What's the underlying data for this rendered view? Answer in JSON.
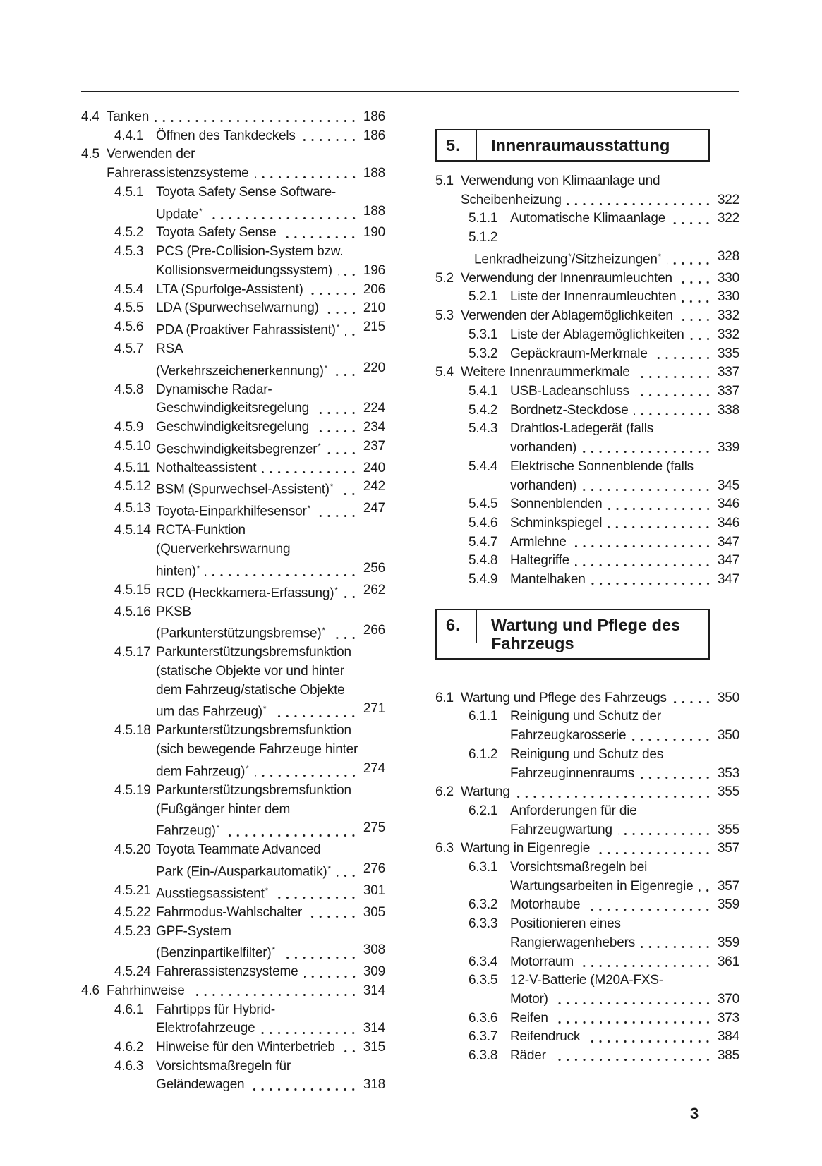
{
  "page": {
    "footer_page_number": "3",
    "text_color": "#1a1a1a"
  },
  "toc": {
    "left_column": {
      "items": [
        {
          "type": "entry",
          "num": "4.4",
          "level": 1,
          "lines": [
            "Tanken"
          ],
          "page": "186"
        },
        {
          "type": "entry",
          "num": "4.4.1",
          "level": 2,
          "lines": [
            "Öffnen des Tankdeckels"
          ],
          "page": "186"
        },
        {
          "type": "entry",
          "num": "4.5",
          "level": 1,
          "lines": [
            "Verwenden der",
            "Fahrerassistenzsysteme"
          ],
          "page": "188"
        },
        {
          "type": "entry",
          "num": "4.5.1",
          "level": 2,
          "lines": [
            "Toyota Safety Sense Software-",
            "Update*"
          ],
          "page": "188"
        },
        {
          "type": "entry",
          "num": "4.5.2",
          "level": 2,
          "lines": [
            "Toyota Safety Sense"
          ],
          "page": "190"
        },
        {
          "type": "entry",
          "num": "4.5.3",
          "level": 2,
          "lines": [
            "PCS (Pre-Collision-System bzw.",
            "Kollisionsvermeidungssystem)"
          ],
          "page": "196"
        },
        {
          "type": "entry",
          "num": "4.5.4",
          "level": 2,
          "lines": [
            "LTA (Spurfolge-Assistent)"
          ],
          "page": "206"
        },
        {
          "type": "entry",
          "num": "4.5.5",
          "level": 2,
          "lines": [
            "LDA (Spurwechselwarnung)"
          ],
          "page": "210"
        },
        {
          "type": "entry",
          "num": "4.5.6",
          "level": 2,
          "lines": [
            "PDA (Proaktiver Fahrassistent)*"
          ],
          "page": "215"
        },
        {
          "type": "entry",
          "num": "4.5.7",
          "level": 2,
          "lines": [
            "RSA",
            "(Verkehrszeichenerkennung)*"
          ],
          "page": "220"
        },
        {
          "type": "entry",
          "num": "4.5.8",
          "level": 2,
          "lines": [
            "Dynamische Radar-",
            "Geschwindigkeitsregelung"
          ],
          "page": "224"
        },
        {
          "type": "entry",
          "num": "4.5.9",
          "level": 2,
          "lines": [
            "Geschwindigkeitsregelung"
          ],
          "page": "234"
        },
        {
          "type": "entry",
          "num": "4.5.10",
          "level": 2,
          "lines": [
            "Geschwindigkeitsbegrenzer*"
          ],
          "page": "237"
        },
        {
          "type": "entry",
          "num": "4.5.11",
          "level": 2,
          "lines": [
            "Nothalteassistent"
          ],
          "page": "240"
        },
        {
          "type": "entry",
          "num": "4.5.12",
          "level": 2,
          "lines": [
            "BSM (Spurwechsel-Assistent)*"
          ],
          "page": "242"
        },
        {
          "type": "entry",
          "num": "4.5.13",
          "level": 2,
          "lines": [
            "Toyota-Einparkhilfesensor*"
          ],
          "page": "247"
        },
        {
          "type": "entry",
          "num": "4.5.14",
          "level": 2,
          "lines": [
            "RCTA-Funktion",
            "(Querverkehrswarnung",
            "hinten)*"
          ],
          "page": "256"
        },
        {
          "type": "entry",
          "num": "4.5.15",
          "level": 2,
          "lines": [
            "RCD (Heckkamera-Erfassung)*"
          ],
          "page": "262"
        },
        {
          "type": "entry",
          "num": "4.5.16",
          "level": 2,
          "lines": [
            "PKSB",
            "(Parkunterstützungsbremse)*"
          ],
          "page": "266"
        },
        {
          "type": "entry",
          "num": "4.5.17",
          "level": 2,
          "lines": [
            "Parkunterstützungsbremsfunktion",
            "(statische Objekte vor und hinter",
            "dem Fahrzeug/statische Objekte",
            "um das Fahrzeug)*"
          ],
          "page": "271"
        },
        {
          "type": "entry",
          "num": "4.5.18",
          "level": 2,
          "lines": [
            "Parkunterstützungsbremsfunktion",
            "(sich bewegende Fahrzeuge hinter",
            "dem Fahrzeug)*"
          ],
          "page": "274"
        },
        {
          "type": "entry",
          "num": "4.5.19",
          "level": 2,
          "lines": [
            "Parkunterstützungsbremsfunktion",
            "(Fußgänger hinter dem",
            "Fahrzeug)*"
          ],
          "page": "275"
        },
        {
          "type": "entry",
          "num": "4.5.20",
          "level": 2,
          "lines": [
            "Toyota Teammate Advanced",
            "Park (Ein-/Ausparkautomatik)*"
          ],
          "page": "276"
        },
        {
          "type": "entry",
          "num": "4.5.21",
          "level": 2,
          "lines": [
            "Ausstiegsassistent*"
          ],
          "page": "301"
        },
        {
          "type": "entry",
          "num": "4.5.22",
          "level": 2,
          "lines": [
            "Fahrmodus-Wahlschalter"
          ],
          "page": "305"
        },
        {
          "type": "entry",
          "num": "4.5.23",
          "level": 2,
          "lines": [
            "GPF-System",
            "(Benzinpartikelfilter)*"
          ],
          "page": "308"
        },
        {
          "type": "entry",
          "num": "4.5.24",
          "level": 2,
          "lines": [
            "Fahrerassistenzsysteme"
          ],
          "page": "309"
        },
        {
          "type": "entry",
          "num": "4.6",
          "level": 1,
          "lines": [
            "Fahrhinweise"
          ],
          "page": "314"
        },
        {
          "type": "entry",
          "num": "4.6.1",
          "level": 2,
          "lines": [
            "Fahrtipps für Hybrid-",
            "Elektrofahrzeuge"
          ],
          "page": "314"
        },
        {
          "type": "entry",
          "num": "4.6.2",
          "level": 2,
          "lines": [
            "Hinweise für den Winterbetrieb"
          ],
          "page": "315"
        },
        {
          "type": "entry",
          "num": "4.6.3",
          "level": 2,
          "lines": [
            "Vorsichtsmaßregeln für",
            "Geländewagen"
          ],
          "page": "318"
        }
      ]
    },
    "right_column": {
      "items": [
        {
          "type": "chapter",
          "id": "chapter-5",
          "num": "5.",
          "title_lines": [
            "Innenraumausstattung"
          ]
        },
        {
          "type": "entry",
          "num": "5.1",
          "level": 1,
          "lines": [
            "Verwendung von Klimaanlage und",
            "Scheibenheizung"
          ],
          "page": "322"
        },
        {
          "type": "entry",
          "num": "5.1.1",
          "level": 2,
          "lines": [
            "Automatische Klimaanlage"
          ],
          "page": "322"
        },
        {
          "type": "entry",
          "num": "5.1.2",
          "level": 2,
          "num_own_line": true,
          "lines": [
            "Lenkradheizung*/Sitzheizungen*"
          ],
          "page": "328"
        },
        {
          "type": "entry",
          "num": "5.2",
          "level": 1,
          "lines": [
            "Verwendung der Innenraumleuchten"
          ],
          "page": "330"
        },
        {
          "type": "entry",
          "num": "5.2.1",
          "level": 2,
          "lines": [
            "Liste der Innenraumleuchten"
          ],
          "page": "330"
        },
        {
          "type": "entry",
          "num": "5.3",
          "level": 1,
          "lines": [
            "Verwenden der Ablagemöglichkeiten"
          ],
          "page": "332"
        },
        {
          "type": "entry",
          "num": "5.3.1",
          "level": 2,
          "lines": [
            "Liste der Ablagemöglichkeiten"
          ],
          "page": "332"
        },
        {
          "type": "entry",
          "num": "5.3.2",
          "level": 2,
          "lines": [
            "Gepäckraum-Merkmale"
          ],
          "page": "335"
        },
        {
          "type": "entry",
          "num": "5.4",
          "level": 1,
          "lines": [
            "Weitere Innenraummerkmale"
          ],
          "page": "337"
        },
        {
          "type": "entry",
          "num": "5.4.1",
          "level": 2,
          "lines": [
            "USB-Ladeanschluss"
          ],
          "page": "337"
        },
        {
          "type": "entry",
          "num": "5.4.2",
          "level": 2,
          "lines": [
            "Bordnetz-Steckdose"
          ],
          "page": "338"
        },
        {
          "type": "entry",
          "num": "5.4.3",
          "level": 2,
          "lines": [
            "Drahtlos-Ladegerät (falls",
            "vorhanden)"
          ],
          "page": "339"
        },
        {
          "type": "entry",
          "num": "5.4.4",
          "level": 2,
          "lines": [
            "Elektrische Sonnenblende (falls",
            "vorhanden)"
          ],
          "page": "345"
        },
        {
          "type": "entry",
          "num": "5.4.5",
          "level": 2,
          "lines": [
            "Sonnenblenden"
          ],
          "page": "346"
        },
        {
          "type": "entry",
          "num": "5.4.6",
          "level": 2,
          "lines": [
            "Schminkspiegel"
          ],
          "page": "346"
        },
        {
          "type": "entry",
          "num": "5.4.7",
          "level": 2,
          "lines": [
            "Armlehne"
          ],
          "page": "347"
        },
        {
          "type": "entry",
          "num": "5.4.8",
          "level": 2,
          "lines": [
            "Haltegriffe"
          ],
          "page": "347"
        },
        {
          "type": "entry",
          "num": "5.4.9",
          "level": 2,
          "lines": [
            "Mantelhaken"
          ],
          "page": "347"
        },
        {
          "type": "chapter",
          "id": "chapter-6",
          "num": "6.",
          "title_lines": [
            "Wartung und Pflege des",
            "Fahrzeugs"
          ]
        },
        {
          "type": "entry",
          "num": "6.1",
          "level": 1,
          "lines": [
            "Wartung und Pflege des Fahrzeugs"
          ],
          "page": "350"
        },
        {
          "type": "entry",
          "num": "6.1.1",
          "level": 2,
          "lines": [
            "Reinigung und Schutz der",
            "Fahrzeugkarosserie"
          ],
          "page": "350"
        },
        {
          "type": "entry",
          "num": "6.1.2",
          "level": 2,
          "lines": [
            "Reinigung und Schutz des",
            "Fahrzeuginnenraums"
          ],
          "page": "353"
        },
        {
          "type": "entry",
          "num": "6.2",
          "level": 1,
          "lines": [
            "Wartung"
          ],
          "page": "355"
        },
        {
          "type": "entry",
          "num": "6.2.1",
          "level": 2,
          "lines": [
            "Anforderungen für die",
            "Fahrzeugwartung"
          ],
          "page": "355"
        },
        {
          "type": "entry",
          "num": "6.3",
          "level": 1,
          "lines": [
            "Wartung in Eigenregie"
          ],
          "page": "357"
        },
        {
          "type": "entry",
          "num": "6.3.1",
          "level": 2,
          "lines": [
            "Vorsichtsmaßregeln bei",
            "Wartungsarbeiten in Eigenregie"
          ],
          "page": "357"
        },
        {
          "type": "entry",
          "num": "6.3.2",
          "level": 2,
          "lines": [
            "Motorhaube"
          ],
          "page": "359"
        },
        {
          "type": "entry",
          "num": "6.3.3",
          "level": 2,
          "lines": [
            "Positionieren eines",
            "Rangierwagenhebers"
          ],
          "page": "359"
        },
        {
          "type": "entry",
          "num": "6.3.4",
          "level": 2,
          "lines": [
            "Motorraum"
          ],
          "page": "361"
        },
        {
          "type": "entry",
          "num": "6.3.5",
          "level": 2,
          "lines": [
            "12-V-Batterie (M20A-FXS-",
            "Motor)"
          ],
          "page": "370"
        },
        {
          "type": "entry",
          "num": "6.3.6",
          "level": 2,
          "lines": [
            "Reifen"
          ],
          "page": "373"
        },
        {
          "type": "entry",
          "num": "6.3.7",
          "level": 2,
          "lines": [
            "Reifendruck"
          ],
          "page": "384"
        },
        {
          "type": "entry",
          "num": "6.3.8",
          "level": 2,
          "lines": [
            "Räder"
          ],
          "page": "385"
        }
      ]
    }
  }
}
